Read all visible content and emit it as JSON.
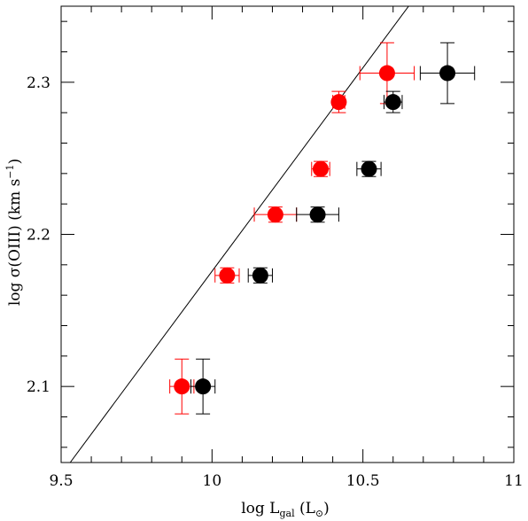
{
  "chart_data": {
    "type": "scatter",
    "title": "",
    "xlabel": "log L_gal (L_⊙)",
    "xlabel_parts": {
      "main": "log L",
      "sub": "gal",
      "tail": " (L",
      "sun": "⊙",
      "close": ")"
    },
    "ylabel": "log σ(OIII) (km s⁻¹)",
    "ylabel_parts": {
      "main": "log σ(OIII) (km s",
      "sup": "−1",
      "close": ")"
    },
    "xlim": [
      9.5,
      11
    ],
    "ylim": [
      2.05,
      2.35
    ],
    "x_ticks": [
      9.5,
      10,
      10.5,
      11
    ],
    "x_tick_labels": [
      "9.5",
      "10",
      "10.5",
      "11"
    ],
    "y_ticks": [
      2.1,
      2.2,
      2.3
    ],
    "y_tick_labels": [
      "2.1",
      "2.2",
      "2.3"
    ],
    "x_minor_step": 0.1,
    "y_minor_step": 0.02,
    "grid": false,
    "line": {
      "x": [
        9.53,
        10.67
      ],
      "y": [
        2.05,
        2.355
      ],
      "color": "#000000"
    },
    "series": [
      {
        "color": "#ff0000",
        "points": [
          {
            "x": 9.9,
            "y": 2.1,
            "xerr": 0.04,
            "yerr": 0.018
          },
          {
            "x": 10.05,
            "y": 2.173,
            "xerr": 0.04,
            "yerr": 0.005
          },
          {
            "x": 10.21,
            "y": 2.213,
            "xerr": 0.07,
            "yerr": 0.005
          },
          {
            "x": 10.36,
            "y": 2.243,
            "xerr": 0.03,
            "yerr": 0.005
          },
          {
            "x": 10.42,
            "y": 2.287,
            "xerr": 0.02,
            "yerr": 0.007
          },
          {
            "x": 10.58,
            "y": 2.306,
            "xerr": 0.09,
            "yerr": 0.02
          }
        ]
      },
      {
        "color": "#000000",
        "points": [
          {
            "x": 9.97,
            "y": 2.1,
            "xerr": 0.04,
            "yerr": 0.018
          },
          {
            "x": 10.16,
            "y": 2.173,
            "xerr": 0.04,
            "yerr": 0.005
          },
          {
            "x": 10.35,
            "y": 2.213,
            "xerr": 0.07,
            "yerr": 0.005
          },
          {
            "x": 10.52,
            "y": 2.243,
            "xerr": 0.04,
            "yerr": 0.005
          },
          {
            "x": 10.6,
            "y": 2.287,
            "xerr": 0.03,
            "yerr": 0.007
          },
          {
            "x": 10.78,
            "y": 2.306,
            "xerr": 0.09,
            "yerr": 0.02
          }
        ]
      }
    ]
  }
}
